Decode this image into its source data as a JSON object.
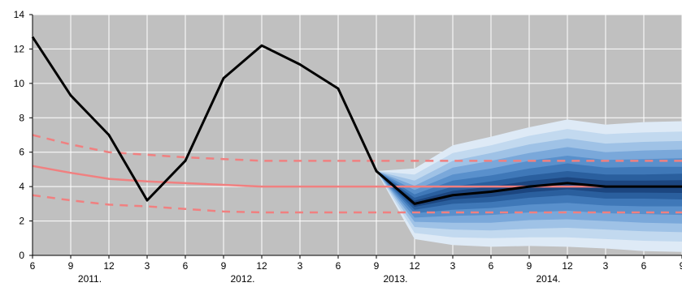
{
  "chart_data": {
    "type": "line",
    "y_ticks": [
      "0",
      "2",
      "4",
      "6",
      "8",
      "10",
      "12",
      "14"
    ],
    "ylim": [
      0,
      14
    ],
    "x_ticks": [
      "6",
      "9",
      "12",
      "3",
      "6",
      "9",
      "12",
      "3",
      "6",
      "9",
      "12",
      "3",
      "6",
      "9",
      "12",
      "3",
      "6",
      "9"
    ],
    "x_year_labels": [
      {
        "label": "2011.",
        "between": [
          1,
          2
        ]
      },
      {
        "label": "2012.",
        "between": [
          5,
          6
        ]
      },
      {
        "label": "2013.",
        "between": [
          9,
          10
        ]
      },
      {
        "label": "2014.",
        "between": [
          13,
          14
        ]
      }
    ],
    "grid": true,
    "series": [
      {
        "role": "actual",
        "color": "#000000",
        "x": [
          0,
          1,
          2,
          3,
          4,
          5,
          6,
          7,
          8,
          9,
          10,
          11,
          12,
          13,
          14,
          15,
          16,
          17
        ],
        "values": [
          12.7,
          9.3,
          7.0,
          3.2,
          5.5,
          10.3,
          12.2,
          11.1,
          9.7,
          4.9,
          3.0,
          3.5,
          3.7,
          4.0,
          4.2,
          4.0,
          4.0,
          4.0
        ]
      },
      {
        "role": "target",
        "color": "#f08080",
        "style": "solid",
        "x": [
          0,
          1,
          2,
          3,
          4,
          5,
          6,
          7,
          8,
          9,
          10,
          11,
          12,
          13,
          14,
          15,
          16,
          17
        ],
        "values": [
          5.2,
          4.8,
          4.45,
          4.3,
          4.2,
          4.1,
          4.0,
          4.0,
          4.0,
          4.0,
          4.0,
          4.0,
          4.0,
          4.0,
          4.0,
          4.0,
          4.0,
          4.0
        ]
      },
      {
        "role": "target-upper",
        "color": "#f08080",
        "style": "dashed",
        "x": [
          0,
          1,
          2,
          3,
          4,
          5,
          6,
          7,
          8,
          9,
          10,
          11,
          12,
          13,
          14,
          15,
          16,
          17
        ],
        "values": [
          7.0,
          6.45,
          6.0,
          5.85,
          5.7,
          5.6,
          5.5,
          5.5,
          5.5,
          5.5,
          5.5,
          5.5,
          5.5,
          5.5,
          5.5,
          5.5,
          5.5,
          5.5
        ]
      },
      {
        "role": "target-lower",
        "color": "#f08080",
        "style": "dashed",
        "x": [
          0,
          1,
          2,
          3,
          4,
          5,
          6,
          7,
          8,
          9,
          10,
          11,
          12,
          13,
          14,
          15,
          16,
          17
        ],
        "values": [
          3.5,
          3.2,
          2.95,
          2.85,
          2.7,
          2.55,
          2.5,
          2.5,
          2.5,
          2.5,
          2.5,
          2.5,
          2.5,
          2.5,
          2.5,
          2.5,
          2.5,
          2.5
        ]
      }
    ],
    "fan": {
      "x": [
        9,
        10,
        11,
        12,
        13,
        14,
        15,
        16,
        17
      ],
      "center": [
        4.9,
        3.0,
        3.5,
        3.7,
        4.0,
        4.2,
        4.0,
        4.0,
        4.0
      ],
      "half_widths": [
        [
          0,
          2.05,
          2.9,
          3.2,
          3.45,
          3.7,
          3.6,
          3.75,
          3.8
        ],
        [
          0,
          1.7,
          2.45,
          2.7,
          2.95,
          3.15,
          3.05,
          3.15,
          3.2
        ],
        [
          0,
          1.35,
          2.0,
          2.25,
          2.45,
          2.6,
          2.5,
          2.6,
          2.65
        ],
        [
          0,
          1.05,
          1.6,
          1.8,
          1.95,
          2.1,
          2.0,
          2.1,
          2.15
        ],
        [
          0,
          0.8,
          1.2,
          1.35,
          1.5,
          1.6,
          1.55,
          1.6,
          1.65
        ],
        [
          0,
          0.55,
          0.85,
          0.95,
          1.05,
          1.15,
          1.1,
          1.15,
          1.15
        ],
        [
          0,
          0.35,
          0.5,
          0.6,
          0.65,
          0.7,
          0.7,
          0.7,
          0.75
        ],
        [
          0,
          0.18,
          0.25,
          0.3,
          0.33,
          0.35,
          0.35,
          0.35,
          0.37
        ]
      ],
      "colors": [
        "#deeaf6",
        "#c2d9ef",
        "#9fc2e6",
        "#7aa8da",
        "#5990cc",
        "#3f78b8",
        "#2a5f9e",
        "#1c4680"
      ]
    },
    "colors": {
      "plot_background": "#c0c0c0",
      "grid": "#ffffff",
      "actual": "#000000",
      "target": "#f08080"
    }
  }
}
